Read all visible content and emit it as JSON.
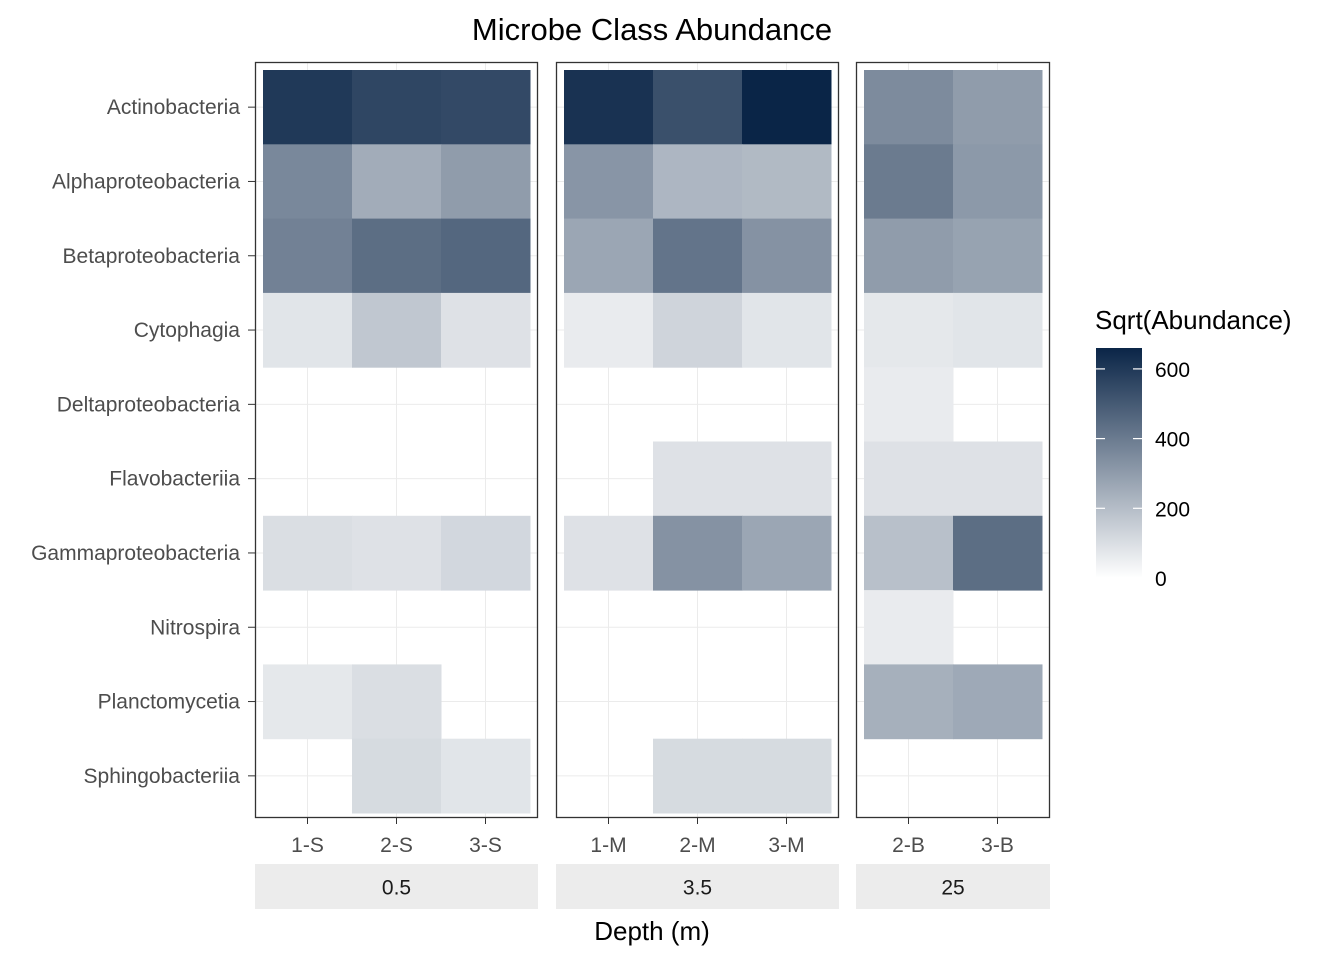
{
  "chart_data": {
    "type": "heatmap",
    "title": "Microbe Class Abundance",
    "xlabel": "Depth (m)",
    "ylabel": "",
    "rows": [
      "Actinobacteria",
      "Alphaproteobacteria",
      "Betaproteobacteria",
      "Cytophagia",
      "Deltaproteobacteria",
      "Flavobacteriia",
      "Gammaproteobacteria",
      "Nitrospira",
      "Planctomycetia",
      "Sphingobacteriia"
    ],
    "panels": [
      {
        "label": "0.5",
        "columns": [
          "1-S",
          "2-S",
          "3-S"
        ],
        "values": [
          [
            600,
            560,
            550
          ],
          [
            360,
            250,
            300
          ],
          [
            380,
            440,
            460
          ],
          [
            80,
            170,
            90
          ],
          [
            0,
            0,
            0
          ],
          [
            0,
            0,
            0
          ],
          [
            100,
            90,
            120
          ],
          [
            0,
            0,
            0
          ],
          [
            70,
            100,
            0
          ],
          [
            0,
            110,
            80
          ]
        ]
      },
      {
        "label": "3.5",
        "columns": [
          "1-M",
          "2-M",
          "3-M"
        ],
        "values": [
          [
            620,
            530,
            660
          ],
          [
            320,
            220,
            210
          ],
          [
            270,
            420,
            330
          ],
          [
            60,
            130,
            80
          ],
          [
            0,
            0,
            0
          ],
          [
            0,
            90,
            90
          ],
          [
            90,
            330,
            270
          ],
          [
            0,
            0,
            0
          ],
          [
            0,
            0,
            0
          ],
          [
            0,
            110,
            110
          ]
        ]
      },
      {
        "label": "25",
        "columns": [
          "2-B",
          "3-B"
        ],
        "values": [
          [
            350,
            300
          ],
          [
            400,
            310
          ],
          [
            300,
            280
          ],
          [
            70,
            80
          ],
          [
            60,
            0
          ],
          [
            90,
            90
          ],
          [
            190,
            440
          ],
          [
            60,
            0
          ],
          [
            240,
            260
          ],
          [
            0,
            0
          ]
        ]
      }
    ],
    "colorscale": {
      "title": "Sqrt(Abundance)",
      "low_color": "#ffffff",
      "high_color": "#0a2547",
      "min": 0,
      "max": 660,
      "ticks": [
        "0",
        "200",
        "400",
        "600"
      ],
      "tick_values": [
        0,
        200,
        400,
        600
      ]
    },
    "grid": true,
    "legend_position": "right"
  }
}
